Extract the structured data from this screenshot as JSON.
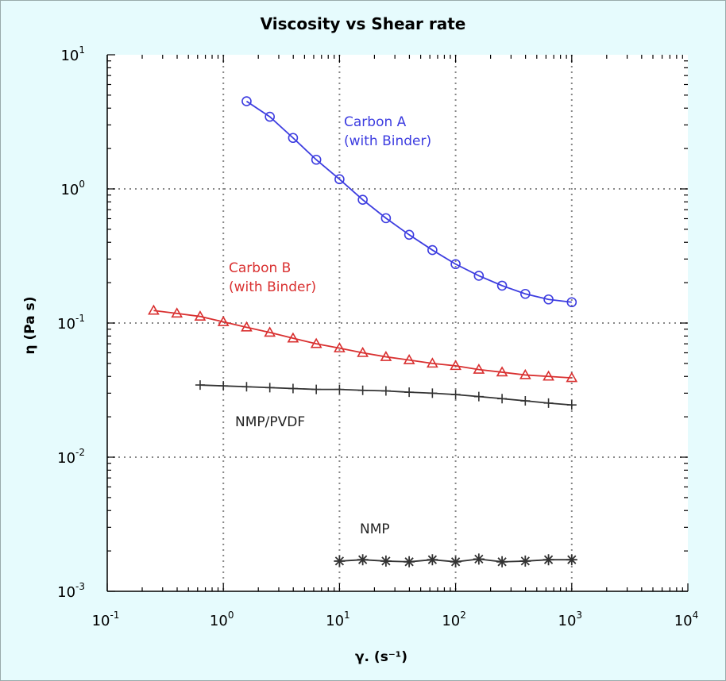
{
  "chart_data": {
    "type": "scatter",
    "title": "Viscosity vs Shear rate",
    "xlabel": "γ. (s⁻¹)",
    "ylabel": "η (Pa s)",
    "xscale": "log",
    "yscale": "log",
    "xlim": [
      0.1,
      10000
    ],
    "ylim": [
      0.001,
      10
    ],
    "x_ticks": [
      {
        "base": "10",
        "exp": "-1"
      },
      {
        "base": "10",
        "exp": "0"
      },
      {
        "base": "10",
        "exp": "1"
      },
      {
        "base": "10",
        "exp": "2"
      },
      {
        "base": "10",
        "exp": "3"
      },
      {
        "base": "10",
        "exp": "4"
      }
    ],
    "y_ticks": [
      {
        "base": "10",
        "exp": "-3"
      },
      {
        "base": "10",
        "exp": "-2"
      },
      {
        "base": "10",
        "exp": "-1"
      },
      {
        "base": "10",
        "exp": "0"
      },
      {
        "base": "10",
        "exp": "1"
      }
    ],
    "grid": "dotted",
    "series": [
      {
        "label_lines": [
          "Carbon A",
          "(with Binder)"
        ],
        "color": "#3d3de0",
        "marker": "circle",
        "x": [
          1.585,
          2.512,
          3.981,
          6.31,
          10,
          15.85,
          25.12,
          39.81,
          63.1,
          100,
          158.5,
          251.2,
          398.1,
          631,
          1000
        ],
        "y": [
          4.5,
          3.45,
          2.4,
          1.65,
          1.18,
          0.83,
          0.605,
          0.455,
          0.35,
          0.275,
          0.225,
          0.19,
          0.165,
          0.15,
          0.143
        ]
      },
      {
        "label_lines": [
          "Carbon B",
          "(with Binder)"
        ],
        "color": "#d93030",
        "marker": "triangle",
        "x": [
          0.251,
          0.398,
          0.631,
          1,
          1.585,
          2.512,
          3.981,
          6.31,
          10,
          15.85,
          25.12,
          39.81,
          63.1,
          100,
          158.5,
          251.2,
          398.1,
          631,
          1000
        ],
        "y": [
          0.124,
          0.118,
          0.112,
          0.102,
          0.093,
          0.085,
          0.077,
          0.07,
          0.065,
          0.06,
          0.056,
          0.053,
          0.05,
          0.048,
          0.045,
          0.043,
          0.041,
          0.04,
          0.039
        ]
      },
      {
        "label_lines": [
          "NMP/PVDF"
        ],
        "color": "#333333",
        "marker": "plus",
        "x": [
          0.631,
          1,
          1.585,
          2.512,
          3.981,
          6.31,
          10,
          15.85,
          25.12,
          39.81,
          63.1,
          100,
          158.5,
          251.2,
          398.1,
          631,
          1000
        ],
        "y": [
          0.0345,
          0.034,
          0.0335,
          0.033,
          0.0325,
          0.032,
          0.032,
          0.0315,
          0.0312,
          0.0305,
          0.03,
          0.0293,
          0.0283,
          0.0273,
          0.0263,
          0.0253,
          0.0245
        ]
      },
      {
        "label_lines": [
          "NMP"
        ],
        "color": "#333333",
        "marker": "asterisk",
        "x": [
          10,
          15.85,
          25.12,
          39.81,
          63.1,
          100,
          158.5,
          251.2,
          398.1,
          631,
          1000
        ],
        "y": [
          0.00168,
          0.00172,
          0.00168,
          0.00166,
          0.00172,
          0.00166,
          0.00174,
          0.00166,
          0.00168,
          0.00172,
          0.00172
        ]
      }
    ]
  }
}
